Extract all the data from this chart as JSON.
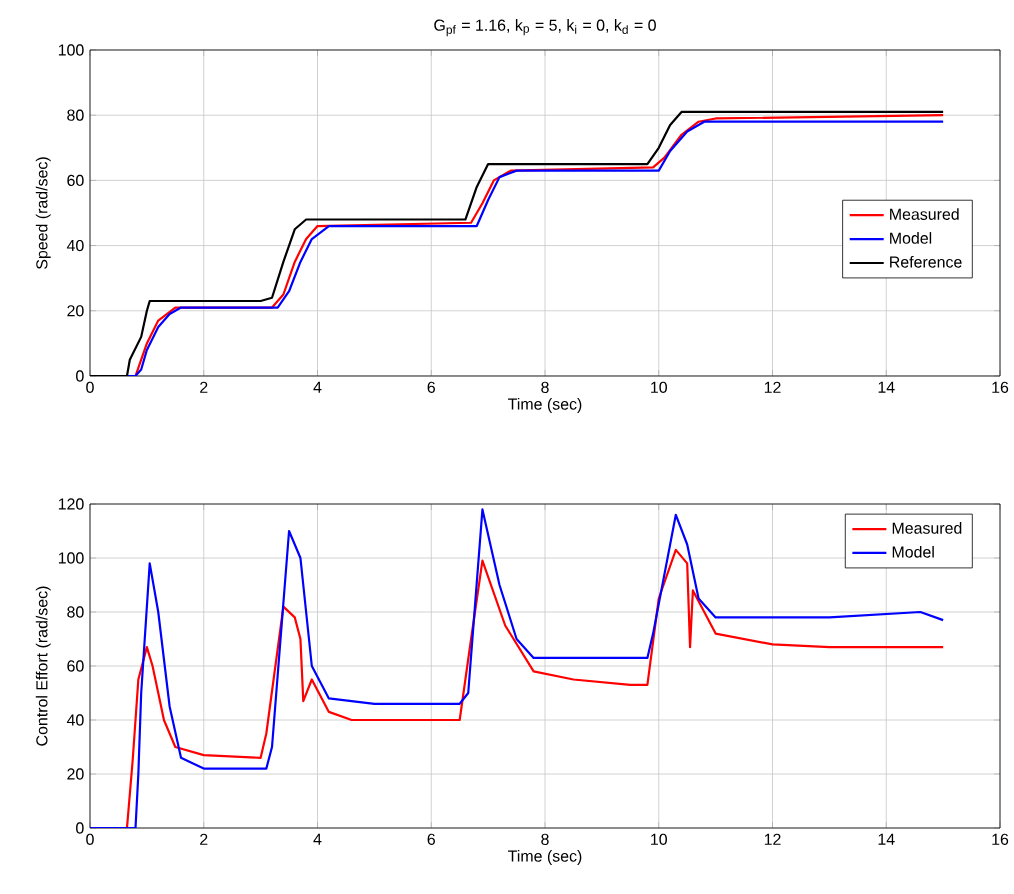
{
  "chart_data": [
    {
      "type": "line",
      "title": "G$_{pf}$ = 1.16, k$_{p}$ = 5, k$_{i}$ = 0, k$_{d}$ = 0",
      "xlabel": "Time (sec)",
      "ylabel": "Speed (rad/sec)",
      "xlim": [
        0,
        16
      ],
      "ylim": [
        0,
        100
      ],
      "xticks": [
        0,
        2,
        4,
        6,
        8,
        10,
        12,
        14,
        16
      ],
      "yticks": [
        0,
        20,
        40,
        60,
        80,
        100
      ],
      "grid": true,
      "legend": "right",
      "series": [
        {
          "name": "Measured",
          "color": "#ff0000",
          "x": [
            0,
            0.8,
            0.9,
            1.0,
            1.2,
            1.5,
            3.2,
            3.4,
            3.6,
            3.8,
            4.0,
            6.7,
            6.9,
            7.1,
            7.4,
            9.9,
            10.1,
            10.4,
            10.7,
            11.0,
            15
          ],
          "values": [
            0,
            0,
            5,
            10,
            17,
            21,
            21,
            25,
            35,
            42,
            46,
            47,
            53,
            60,
            63,
            64,
            67,
            74,
            78,
            79,
            80
          ]
        },
        {
          "name": "Model",
          "color": "#0000ff",
          "x": [
            0,
            0.8,
            0.9,
            1.0,
            1.2,
            1.4,
            1.6,
            3.3,
            3.5,
            3.7,
            3.9,
            4.2,
            6.8,
            7.0,
            7.2,
            7.5,
            10.0,
            10.2,
            10.5,
            10.8,
            11.0,
            15
          ],
          "values": [
            0,
            0,
            2,
            8,
            15,
            19,
            21,
            21,
            26,
            35,
            42,
            46,
            46,
            54,
            61,
            63,
            63,
            69,
            75,
            78,
            78,
            78
          ]
        },
        {
          "name": "Reference",
          "color": "#000000",
          "x": [
            0,
            0.65,
            0.7,
            0.9,
            1.0,
            1.05,
            3.0,
            3.2,
            3.4,
            3.6,
            3.8,
            6.6,
            6.8,
            7.0,
            9.8,
            10.0,
            10.2,
            10.4,
            10.5,
            15
          ],
          "values": [
            0,
            0,
            5,
            12,
            20,
            23,
            23,
            24,
            35,
            45,
            48,
            48,
            58,
            65,
            65,
            70,
            77,
            81,
            81,
            81
          ]
        }
      ]
    },
    {
      "type": "line",
      "xlabel": "Time (sec)",
      "ylabel": "Control Effort (rad/sec)",
      "xlim": [
        0,
        16
      ],
      "ylim": [
        0,
        120
      ],
      "xticks": [
        0,
        2,
        4,
        6,
        8,
        10,
        12,
        14,
        16
      ],
      "yticks": [
        0,
        20,
        40,
        60,
        80,
        100,
        120
      ],
      "grid": true,
      "legend": "top right",
      "series": [
        {
          "name": "Measured",
          "color": "#ff0000",
          "x": [
            0,
            0.65,
            0.75,
            0.85,
            1.0,
            1.1,
            1.3,
            1.5,
            2,
            3.0,
            3.1,
            3.4,
            3.6,
            3.7,
            3.75,
            3.9,
            4.2,
            4.6,
            5,
            6.5,
            6.7,
            6.9,
            7.3,
            7.8,
            8.5,
            9.5,
            9.8,
            10.0,
            10.3,
            10.5,
            10.55,
            10.6,
            11,
            12,
            13,
            15
          ],
          "values": [
            0,
            0,
            25,
            55,
            67,
            60,
            40,
            30,
            27,
            26,
            35,
            82,
            78,
            70,
            47,
            55,
            43,
            40,
            40,
            40,
            70,
            99,
            75,
            58,
            55,
            53,
            53,
            85,
            103,
            98,
            67,
            88,
            72,
            68,
            67,
            67
          ]
        },
        {
          "name": "Model",
          "color": "#0000ff",
          "x": [
            0,
            0.8,
            0.85,
            0.9,
            1.05,
            1.2,
            1.4,
            1.6,
            2,
            3.1,
            3.2,
            3.5,
            3.7,
            3.9,
            4.2,
            5,
            6.5,
            6.65,
            6.9,
            7.2,
            7.5,
            7.8,
            9.8,
            9.9,
            10.3,
            10.5,
            10.7,
            11,
            13,
            14.6,
            15
          ],
          "values": [
            0,
            0,
            20,
            50,
            98,
            80,
            45,
            26,
            22,
            22,
            30,
            110,
            100,
            60,
            48,
            46,
            46,
            50,
            118,
            90,
            70,
            63,
            63,
            72,
            116,
            105,
            85,
            78,
            78,
            80,
            77
          ]
        }
      ]
    }
  ]
}
